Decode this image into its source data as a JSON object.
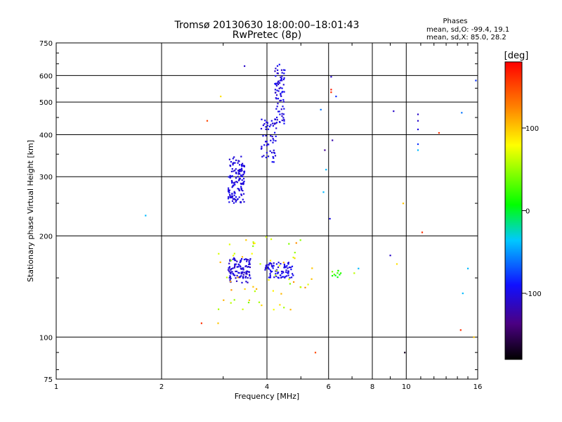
{
  "chart_data": {
    "type": "scatter",
    "title": "Tromsø 20130630 18:00:00–18:01:43",
    "subtitle": "RwPretec (8p)",
    "xlabel": "Frequency [MHz]",
    "ylabel": "Stationary phase Virtual Height [km]",
    "x_scale": "log",
    "y_scale": "log",
    "xlim": [
      1,
      16
    ],
    "ylim": [
      75,
      750
    ],
    "grid": true,
    "x_ticks": [
      1,
      2,
      4,
      6,
      8,
      10,
      16
    ],
    "x_tick_labels": [
      "1",
      "2",
      "4",
      "6",
      "8",
      "10",
      "16"
    ],
    "y_ticks": [
      75,
      100,
      200,
      300,
      400,
      500,
      600,
      750
    ],
    "y_tick_labels": [
      "75",
      "100",
      "200",
      "300",
      "400",
      "500",
      "600",
      "750"
    ],
    "info": {
      "heading": "Phases",
      "line1": "mean, sd,O: -99.4, 19.1",
      "line2": "mean, sd,X:  85.0, 28.2"
    },
    "colorbar": {
      "label": "[deg]",
      "min": -180,
      "max": 180,
      "ticks": [
        100,
        0,
        -100
      ],
      "tick_labels": [
        "100",
        "0",
        "-100"
      ]
    },
    "clusters": [
      {
        "x": [
          3.1,
          3.45
        ],
        "y": [
          250,
          345
        ],
        "n": 140,
        "phase": [
          -110,
          -95
        ]
      },
      {
        "x": [
          3.85,
          4.25
        ],
        "y": [
          330,
          450
        ],
        "n": 55,
        "phase": [
          -110,
          -90
        ]
      },
      {
        "x": [
          4.2,
          4.5
        ],
        "y": [
          430,
          650
        ],
        "n": 80,
        "phase": [
          -115,
          -90
        ]
      },
      {
        "x": [
          3.1,
          3.6
        ],
        "y": [
          145,
          172
        ],
        "n": 110,
        "phase": [
          -115,
          -95
        ]
      },
      {
        "x": [
          3.95,
          4.75
        ],
        "y": [
          150,
          167
        ],
        "n": 85,
        "phase": [
          -110,
          -90
        ]
      },
      {
        "x": [
          2.9,
          5.4
        ],
        "y": [
          120,
          200
        ],
        "n": 60,
        "phase": [
          40,
          120
        ]
      },
      {
        "x": [
          6.1,
          6.5
        ],
        "y": [
          150,
          158
        ],
        "n": 10,
        "phase": [
          0,
          40
        ]
      }
    ],
    "points": [
      {
        "x": 1.8,
        "y": 230,
        "phase": -40
      },
      {
        "x": 2.6,
        "y": 110,
        "phase": 160
      },
      {
        "x": 2.7,
        "y": 440,
        "phase": 150
      },
      {
        "x": 2.9,
        "y": 110,
        "phase": 100
      },
      {
        "x": 2.95,
        "y": 520,
        "phase": 90
      },
      {
        "x": 3.45,
        "y": 640,
        "phase": -110
      },
      {
        "x": 5.5,
        "y": 90,
        "phase": 150
      },
      {
        "x": 5.7,
        "y": 475,
        "phase": -60
      },
      {
        "x": 6.1,
        "y": 595,
        "phase": -110
      },
      {
        "x": 6.1,
        "y": 545,
        "phase": 170
      },
      {
        "x": 6.1,
        "y": 535,
        "phase": 160
      },
      {
        "x": 6.15,
        "y": 385,
        "phase": -120
      },
      {
        "x": 5.85,
        "y": 360,
        "phase": -130
      },
      {
        "x": 5.9,
        "y": 315,
        "phase": -40
      },
      {
        "x": 5.8,
        "y": 270,
        "phase": -40
      },
      {
        "x": 6.05,
        "y": 225,
        "phase": -100
      },
      {
        "x": 6.3,
        "y": 520,
        "phase": -80
      },
      {
        "x": 9.2,
        "y": 470,
        "phase": -110
      },
      {
        "x": 9.0,
        "y": 175,
        "phase": -110
      },
      {
        "x": 9.4,
        "y": 165,
        "phase": 90
      },
      {
        "x": 9.8,
        "y": 250,
        "phase": 100
      },
      {
        "x": 9.9,
        "y": 90,
        "phase": -170
      },
      {
        "x": 10.8,
        "y": 460,
        "phase": -110
      },
      {
        "x": 10.8,
        "y": 440,
        "phase": -110
      },
      {
        "x": 10.8,
        "y": 415,
        "phase": -100
      },
      {
        "x": 10.8,
        "y": 375,
        "phase": -80
      },
      {
        "x": 10.8,
        "y": 360,
        "phase": -40
      },
      {
        "x": 11.1,
        "y": 205,
        "phase": 160
      },
      {
        "x": 12.4,
        "y": 405,
        "phase": 160
      },
      {
        "x": 14.4,
        "y": 465,
        "phase": -60
      },
      {
        "x": 14.3,
        "y": 105,
        "phase": 160
      },
      {
        "x": 14.5,
        "y": 135,
        "phase": -40
      },
      {
        "x": 15.8,
        "y": 580,
        "phase": -80
      },
      {
        "x": 15.6,
        "y": 100,
        "phase": 100
      },
      {
        "x": 15.0,
        "y": 160,
        "phase": -40
      },
      {
        "x": 7.3,
        "y": 160,
        "phase": -40
      },
      {
        "x": 7.1,
        "y": 155,
        "phase": 60
      }
    ]
  }
}
